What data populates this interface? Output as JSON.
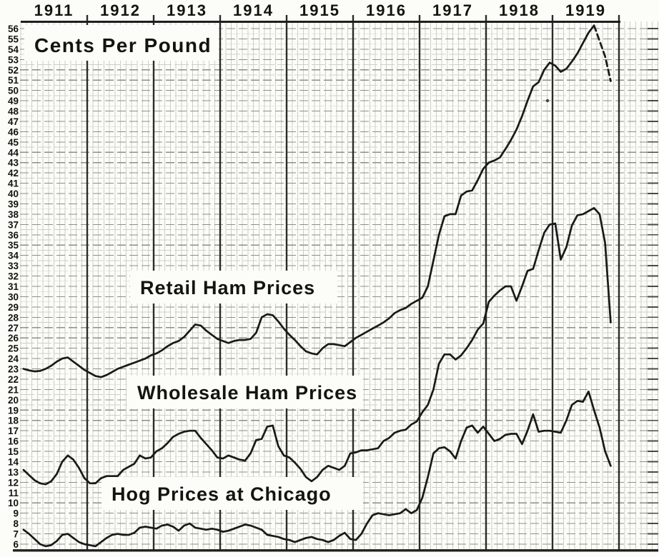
{
  "title": "Cents Per Pound",
  "header": {
    "years": [
      "1911",
      "1912",
      "1913",
      "1914",
      "1915",
      "1916",
      "1917",
      "1918",
      "1919"
    ]
  },
  "y_axis": {
    "unit_label": "Cents Per Pound",
    "ticks": [
      56,
      55,
      54,
      53,
      52,
      51,
      50,
      49,
      48,
      47,
      46,
      45,
      44,
      43,
      42,
      41,
      40,
      39,
      38,
      37,
      36,
      35,
      34,
      33,
      32,
      31,
      30,
      29,
      28,
      27,
      26,
      25,
      24,
      23,
      22,
      21,
      20,
      19,
      18,
      17,
      16,
      15,
      14,
      13,
      12,
      11,
      10,
      9,
      8,
      7,
      6
    ],
    "min": 6,
    "max": 56
  },
  "series_labels": {
    "retail": "Retail Ham Prices",
    "wholesale": "Wholesale Ham Prices",
    "hog": "Hog Prices at Chicago"
  },
  "colors": {
    "paper": "#fcfcf9",
    "ink": "#191917",
    "grid_fine": "#cfcfc7",
    "grid_unit": "#8f8f86",
    "frame": "#1f1f1c",
    "text": "#14140f"
  },
  "chart_data": {
    "type": "line",
    "title": "Cents Per Pound",
    "x_unit": "monthly",
    "x_start": "Jan 1911",
    "x_end": "Nov 1919",
    "years": [
      1911,
      1912,
      1913,
      1914,
      1915,
      1916,
      1917,
      1918,
      1919
    ],
    "ylim": [
      6,
      56
    ],
    "grid": true,
    "legend_position": "inline-labels-on-plot",
    "series": [
      {
        "name": "Retail Ham Prices",
        "values": [
          23.0,
          22.85,
          22.75,
          22.8,
          23.0,
          23.3,
          23.7,
          24.0,
          24.1,
          23.7,
          23.3,
          22.9,
          22.6,
          22.3,
          22.2,
          22.4,
          22.7,
          23.0,
          23.2,
          23.4,
          23.6,
          23.8,
          24.0,
          24.3,
          24.5,
          24.8,
          25.2,
          25.5,
          25.7,
          26.1,
          26.7,
          27.3,
          27.2,
          26.7,
          26.3,
          25.9,
          25.7,
          25.5,
          25.7,
          25.8,
          25.8,
          25.9,
          26.5,
          28.0,
          28.3,
          28.2,
          27.6,
          26.9,
          26.3,
          25.8,
          25.2,
          24.7,
          24.5,
          24.4,
          25.0,
          25.4,
          25.4,
          25.3,
          25.2,
          25.6,
          26.0,
          26.3,
          26.6,
          26.9,
          27.2,
          27.5,
          27.9,
          28.4,
          28.7,
          28.9,
          29.3,
          29.6,
          29.9,
          31.0,
          33.5,
          36.0,
          37.8,
          38.0,
          38.0,
          39.8,
          40.2,
          40.3,
          41.3,
          42.4,
          43.0,
          43.2,
          43.5,
          44.3,
          45.2,
          46.2,
          47.5,
          49.0,
          50.4,
          50.8,
          52.0,
          52.7,
          52.4,
          51.8,
          52.1,
          52.8,
          53.6,
          54.6,
          55.6,
          56.3,
          54.8,
          53.3,
          50.9
        ]
      },
      {
        "name": "Wholesale Ham Prices",
        "values": [
          13.2,
          12.7,
          12.2,
          11.9,
          11.8,
          12.1,
          12.8,
          14.0,
          14.6,
          14.2,
          13.4,
          12.4,
          11.9,
          11.9,
          12.4,
          12.6,
          12.6,
          12.6,
          13.2,
          13.5,
          13.8,
          14.6,
          14.3,
          14.4,
          15.0,
          15.3,
          15.8,
          16.4,
          16.7,
          16.9,
          17.0,
          17.0,
          16.3,
          15.7,
          15.1,
          14.4,
          14.3,
          14.6,
          14.4,
          14.2,
          14.1,
          14.8,
          16.1,
          16.2,
          17.4,
          17.5,
          15.5,
          14.6,
          14.4,
          13.9,
          13.3,
          12.5,
          12.1,
          12.5,
          13.2,
          13.6,
          13.4,
          13.2,
          13.6,
          14.8,
          14.9,
          15.1,
          15.1,
          15.2,
          15.3,
          16.0,
          16.3,
          16.8,
          17.0,
          17.1,
          17.6,
          17.9,
          18.8,
          19.5,
          21.0,
          23.5,
          24.4,
          24.4,
          23.9,
          24.3,
          25.0,
          25.8,
          26.8,
          27.4,
          29.5,
          30.1,
          30.6,
          31.0,
          31.0,
          29.6,
          31.0,
          32.5,
          32.7,
          34.5,
          36.2,
          37.0,
          37.1,
          33.6,
          34.8,
          36.9,
          37.9,
          38.0,
          38.3,
          38.6,
          38.0,
          35.2,
          27.5
        ]
      },
      {
        "name": "Hog Prices at Chicago",
        "values": [
          7.4,
          7.0,
          6.5,
          6.0,
          5.8,
          5.9,
          6.3,
          6.9,
          7.0,
          6.6,
          6.2,
          6.0,
          5.9,
          5.8,
          6.2,
          6.6,
          6.9,
          7.0,
          6.9,
          6.9,
          7.1,
          7.6,
          7.7,
          7.6,
          7.5,
          7.8,
          7.9,
          7.7,
          7.3,
          7.8,
          8.0,
          7.6,
          7.5,
          7.4,
          7.5,
          7.4,
          7.2,
          7.3,
          7.5,
          7.7,
          7.9,
          7.8,
          7.6,
          7.4,
          6.9,
          6.8,
          6.7,
          6.5,
          6.4,
          6.2,
          6.4,
          6.6,
          6.7,
          6.5,
          6.4,
          6.2,
          6.4,
          6.8,
          7.1,
          6.5,
          6.4,
          7.0,
          8.0,
          8.8,
          9.0,
          8.9,
          8.8,
          8.9,
          9.0,
          9.4,
          9.0,
          9.3,
          10.5,
          12.5,
          14.8,
          15.3,
          15.4,
          15.0,
          14.3,
          16.0,
          17.3,
          17.5,
          16.8,
          17.4,
          16.7,
          16.0,
          16.2,
          16.6,
          16.7,
          16.7,
          15.7,
          17.0,
          18.6,
          16.9,
          17.0,
          17.0,
          16.9,
          16.8,
          18.0,
          19.5,
          19.9,
          19.8,
          20.8,
          19.0,
          17.3,
          15.0,
          13.6
        ]
      }
    ]
  }
}
